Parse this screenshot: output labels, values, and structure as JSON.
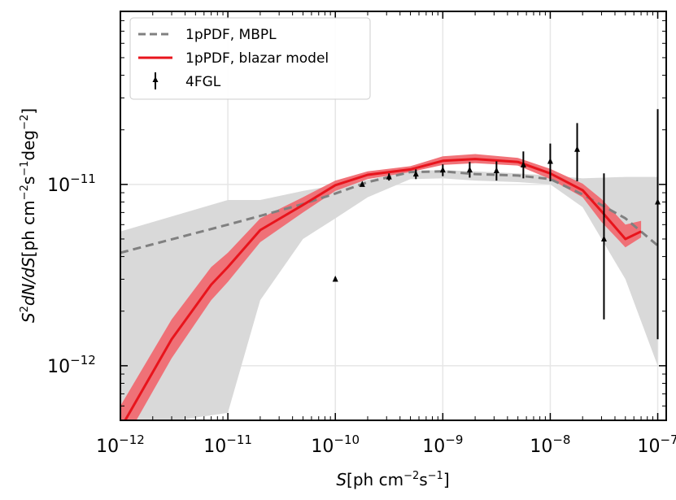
{
  "chart_data": {
    "type": "line",
    "scale": {
      "x": "log",
      "y": "log"
    },
    "xlim": [
      1e-12,
      1.2e-07
    ],
    "ylim": [
      5e-13,
      9e-11
    ],
    "xlabel": {
      "base": "S",
      "unit": "[ph cm",
      "exp1": "−2",
      "mid": "s",
      "exp2": "−1",
      "close": "]"
    },
    "ylabel": {
      "prefix": "S",
      "sup": "2",
      "rest": "dN/dS",
      "unit": "[ph cm",
      "e1": "−2",
      "s": "s",
      "e2": "−1",
      "deg": "deg",
      "e3": "−2",
      "close": "]"
    },
    "xticks": [
      {
        "value": 1e-12,
        "base": "10",
        "exp": "−12"
      },
      {
        "value": 1e-11,
        "base": "10",
        "exp": "−11"
      },
      {
        "value": 1e-10,
        "base": "10",
        "exp": "−10"
      },
      {
        "value": 1e-09,
        "base": "10",
        "exp": "−9"
      },
      {
        "value": 1e-08,
        "base": "10",
        "exp": "−8"
      },
      {
        "value": 1e-07,
        "base": "10",
        "exp": "−7"
      }
    ],
    "yticks": [
      {
        "value": 1e-12,
        "base": "10",
        "exp": "−12"
      },
      {
        "value": 1e-11,
        "base": "10",
        "exp": "−11"
      }
    ],
    "grid": true,
    "legend_position": "top-left",
    "legend": [
      {
        "label": "1pPDF, MBPL",
        "style": "dashed",
        "color": "#808080"
      },
      {
        "label": "1pPDF, blazar model",
        "style": "solid",
        "color": "#e8141c"
      },
      {
        "label": "4FGL",
        "style": "errorbar-marker",
        "color": "#000000"
      }
    ],
    "series": [
      {
        "name": "1pPDF, MBPL",
        "style": "dashed",
        "color": "#808080",
        "band_color": "#d9d9d9",
        "x": [
          1e-12,
          1e-11,
          2e-11,
          5e-11,
          1e-10,
          2e-10,
          5e-10,
          1e-09,
          2e-09,
          5e-09,
          1e-08,
          2e-08,
          5e-08,
          1e-07
        ],
        "y": [
          4.2e-12,
          6e-12,
          6.7e-12,
          7.8e-12,
          8.9e-12,
          1.03e-11,
          1.17e-11,
          1.18e-11,
          1.14e-11,
          1.12e-11,
          1.07e-11,
          8.8e-12,
          6.5e-12,
          4.6e-12
        ],
        "band_lower": [
          4.5e-13,
          5.5e-13,
          2.3e-12,
          5e-12,
          6.5e-12,
          8.5e-12,
          1.07e-11,
          1.08e-11,
          1.05e-11,
          1.03e-11,
          1e-11,
          7.5e-12,
          3e-12,
          1e-12
        ],
        "band_upper": [
          5.5e-12,
          8.2e-12,
          8.2e-12,
          9.2e-12,
          9.9e-12,
          1.06e-11,
          1.19e-11,
          1.2e-11,
          1.18e-11,
          1.15e-11,
          1.12e-11,
          1.08e-11,
          1.1e-11,
          1.1e-11
        ]
      },
      {
        "name": "1pPDF, blazar model",
        "style": "solid",
        "color": "#e8141c",
        "band_color": "#f06b72",
        "x": [
          1e-12,
          3e-12,
          7e-12,
          1e-11,
          2e-11,
          5e-11,
          1e-10,
          2e-10,
          5e-10,
          1e-09,
          2e-09,
          5e-09,
          1e-08,
          2e-08,
          3e-08,
          5e-08,
          7e-08
        ],
        "y": [
          4.5e-13,
          1.4e-12,
          2.8e-12,
          3.5e-12,
          5.6e-12,
          7.7e-12,
          9.9e-12,
          1.13e-11,
          1.21e-11,
          1.35e-11,
          1.38e-11,
          1.33e-11,
          1.15e-11,
          9.3e-12,
          7.1e-12,
          5e-12,
          5.5e-12
        ],
        "band_lower": [
          3.5e-13,
          1.1e-12,
          2.3e-12,
          2.9e-12,
          4.8e-12,
          7e-12,
          9.2e-12,
          1.07e-11,
          1.17e-11,
          1.28e-11,
          1.31e-11,
          1.27e-11,
          1.07e-11,
          8.5e-12,
          6.2e-12,
          4.5e-12,
          5.1e-12
        ],
        "band_upper": [
          6e-13,
          1.8e-12,
          3.5e-12,
          4.2e-12,
          6.5e-12,
          8.5e-12,
          1.05e-11,
          1.18e-11,
          1.26e-11,
          1.43e-11,
          1.47e-11,
          1.4e-11,
          1.22e-11,
          1.01e-11,
          8.3e-12,
          6e-12,
          6.3e-12
        ]
      },
      {
        "name": "4FGL",
        "style": "errorbar-marker",
        "color": "#000000",
        "points": [
          {
            "x": 1e-10,
            "y": 3e-12,
            "lo": 2.92e-12,
            "hi": 3.08e-12
          },
          {
            "x": 1.78e-10,
            "y": 1e-11,
            "lo": 9.8e-12,
            "hi": 1.02e-11
          },
          {
            "x": 3.16e-10,
            "y": 1.1e-11,
            "lo": 1.05e-11,
            "hi": 1.15e-11
          },
          {
            "x": 5.62e-10,
            "y": 1.14e-11,
            "lo": 1.07e-11,
            "hi": 1.21e-11
          },
          {
            "x": 1e-09,
            "y": 1.2e-11,
            "lo": 1.11e-11,
            "hi": 1.29e-11
          },
          {
            "x": 1.78e-09,
            "y": 1.2e-11,
            "lo": 1.09e-11,
            "hi": 1.33e-11
          },
          {
            "x": 3.16e-09,
            "y": 1.19e-11,
            "lo": 1.05e-11,
            "hi": 1.34e-11
          },
          {
            "x": 5.62e-09,
            "y": 1.28e-11,
            "lo": 1.08e-11,
            "hi": 1.52e-11
          },
          {
            "x": 1e-08,
            "y": 1.34e-11,
            "lo": 1.04e-11,
            "hi": 1.68e-11
          },
          {
            "x": 1.78e-08,
            "y": 1.56e-11,
            "lo": 1.04e-11,
            "hi": 2.18e-11
          },
          {
            "x": 3.16e-08,
            "y": 5e-12,
            "lo": 1.8e-12,
            "hi": 1.15e-11
          },
          {
            "x": 1e-07,
            "y": 8e-12,
            "lo": 1.4e-12,
            "hi": 2.6e-11
          }
        ]
      }
    ]
  }
}
